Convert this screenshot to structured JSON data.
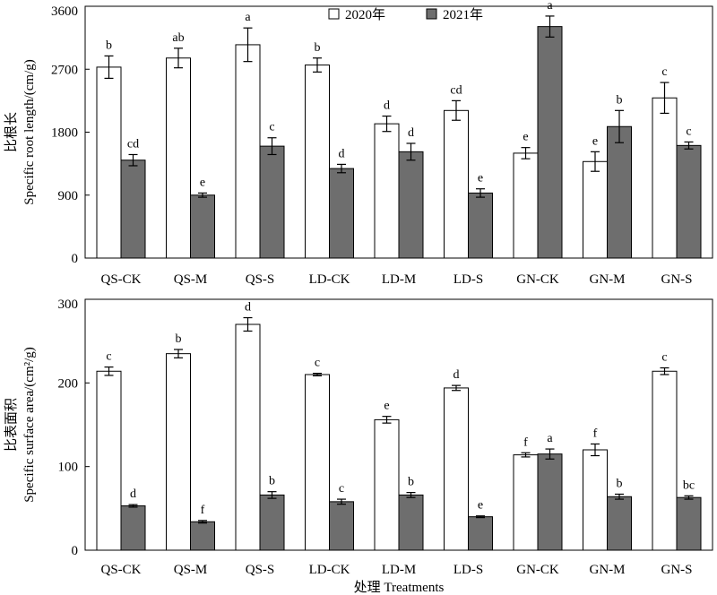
{
  "chart_data": [
    {
      "type": "bar",
      "categories": [
        "QS-CK",
        "QS-M",
        "QS-S",
        "LD-CK",
        "LD-M",
        "LD-S",
        "GN-CK",
        "GN-M",
        "GN-S"
      ],
      "ylabel_cn": "比根长",
      "ylabel_en": "Specific root length/(cm/g)",
      "ylim": [
        0,
        3600
      ],
      "yticks": [
        0,
        900,
        1800,
        2700,
        3600
      ],
      "legend_position": "top-center",
      "grid": false,
      "series": [
        {
          "name": "2020年",
          "color": "#ffffff",
          "values": [
            2730,
            2860,
            3050,
            2760,
            1920,
            2110,
            1500,
            1380,
            2290
          ],
          "errors": [
            160,
            140,
            240,
            100,
            110,
            140,
            80,
            140,
            220
          ],
          "letters": [
            "b",
            "ab",
            "a",
            "b",
            "d",
            "cd",
            "e",
            "e",
            "c"
          ]
        },
        {
          "name": "2021年",
          "color": "#6e6e6e",
          "values": [
            1400,
            900,
            1600,
            1280,
            1520,
            930,
            3310,
            1880,
            1610
          ],
          "errors": [
            80,
            30,
            120,
            60,
            120,
            60,
            150,
            230,
            50
          ],
          "letters": [
            "cd",
            "e",
            "c",
            "d",
            "d",
            "e",
            "a",
            "b",
            "c"
          ]
        }
      ]
    },
    {
      "type": "bar",
      "categories": [
        "QS-CK",
        "QS-M",
        "QS-S",
        "LD-CK",
        "LD-M",
        "LD-S",
        "GN-CK",
        "GN-M",
        "GN-S"
      ],
      "ylabel_cn": "比表面积",
      "ylabel_en": "Specific surface area/(cm²/g)",
      "xlabel": "处理 Treatments",
      "ylim": [
        0,
        300
      ],
      "yticks": [
        0,
        100,
        200,
        300
      ],
      "grid": false,
      "series": [
        {
          "name": "2020年",
          "color": "#ffffff",
          "values": [
            214,
            235,
            270,
            210,
            156,
            194,
            114,
            120,
            214
          ],
          "errors": [
            5,
            5,
            8,
            1.5,
            4,
            3,
            2.5,
            7,
            4
          ],
          "letters": [
            "c",
            "b",
            "d",
            "c",
            "e",
            "d",
            "f",
            "f",
            "c"
          ]
        },
        {
          "name": "2021年",
          "color": "#6e6e6e",
          "values": [
            53,
            34,
            66,
            58,
            66,
            40,
            115,
            64,
            63
          ],
          "errors": [
            1.5,
            1.5,
            4,
            3,
            3,
            1,
            6,
            3,
            2
          ],
          "letters": [
            "d",
            "f",
            "b",
            "c",
            "b",
            "e",
            "a",
            "b",
            "bc"
          ]
        }
      ]
    }
  ]
}
